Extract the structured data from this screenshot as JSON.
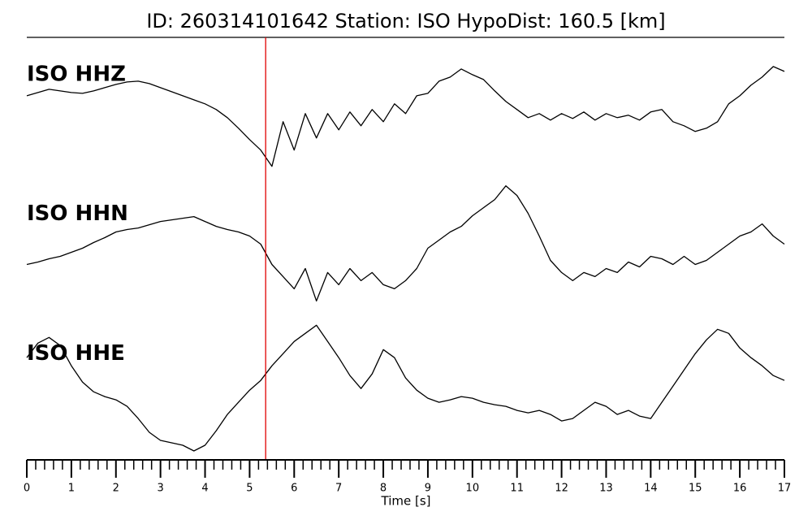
{
  "chart_data": {
    "type": "line",
    "title": "ID: 260314101642   Station: ISO   HypoDist:   160.5 [km]",
    "xlabel": "Time [s]",
    "x": [
      0,
      0.25,
      0.5,
      0.75,
      1,
      1.25,
      1.5,
      1.75,
      2,
      2.25,
      2.5,
      2.75,
      3,
      3.25,
      3.5,
      3.75,
      4,
      4.25,
      4.5,
      4.75,
      5,
      5.25,
      5.5,
      5.75,
      6,
      6.25,
      6.5,
      6.75,
      7,
      7.25,
      7.5,
      7.75,
      8,
      8.25,
      8.5,
      8.75,
      9,
      9.25,
      9.5,
      9.75,
      10,
      10.25,
      10.5,
      10.75,
      11,
      11.25,
      11.5,
      11.75,
      12,
      12.25,
      12.5,
      12.75,
      13,
      13.25,
      13.5,
      13.75,
      14,
      14.25,
      14.5,
      14.75,
      15,
      15.25,
      15.5,
      15.75,
      16,
      16.25,
      16.5,
      16.75,
      17
    ],
    "series": [
      {
        "name": "ISO HHZ",
        "color": "#000000",
        "values": [
          18,
          22,
          26,
          24,
          22,
          21,
          24,
          28,
          32,
          35,
          36,
          33,
          28,
          23,
          18,
          13,
          8,
          1,
          -9,
          -22,
          -36,
          -49,
          -69,
          -14,
          -49,
          -4,
          -34,
          -4,
          -24,
          -2,
          -19,
          1,
          -14,
          8,
          -4,
          18,
          21,
          36,
          41,
          51,
          44,
          38,
          24,
          11,
          1,
          -9,
          -4,
          -12,
          -4,
          -10,
          -2,
          -12,
          -4,
          -9,
          -6,
          -12,
          -2,
          1,
          -14,
          -19,
          -26,
          -22,
          -14,
          8,
          18,
          31,
          41,
          54,
          48
        ]
      },
      {
        "name": "ISO HHN",
        "color": "#000000",
        "values": [
          -18,
          -15,
          -11,
          -8,
          -3,
          2,
          9,
          15,
          22,
          25,
          27,
          31,
          35,
          37,
          39,
          41,
          35,
          29,
          25,
          22,
          17,
          7,
          -18,
          -33,
          -48,
          -23,
          -63,
          -28,
          -43,
          -23,
          -38,
          -28,
          -43,
          -48,
          -38,
          -23,
          2,
          12,
          22,
          29,
          42,
          52,
          62,
          79,
          67,
          45,
          17,
          -13,
          -28,
          -38,
          -28,
          -33,
          -23,
          -28,
          -15,
          -21,
          -8,
          -11,
          -18,
          -8,
          -18,
          -13,
          -3,
          7,
          17,
          22,
          32,
          17,
          7
        ]
      },
      {
        "name": "ISO HHE",
        "color": "#000000",
        "values": [
          39,
          57,
          64,
          54,
          29,
          9,
          -3,
          -9,
          -13,
          -21,
          -36,
          -53,
          -63,
          -66,
          -69,
          -76,
          -69,
          -51,
          -31,
          -16,
          -1,
          11,
          29,
          44,
          59,
          69,
          79,
          59,
          39,
          17,
          1,
          19,
          49,
          39,
          14,
          -1,
          -11,
          -16,
          -13,
          -9,
          -11,
          -16,
          -19,
          -21,
          -26,
          -29,
          -26,
          -31,
          -39,
          -36,
          -26,
          -16,
          -21,
          -31,
          -26,
          -33,
          -36,
          -16,
          4,
          24,
          44,
          61,
          74,
          69,
          51,
          39,
          29,
          17,
          11
        ]
      }
    ],
    "label_color": "#4c9a0a",
    "ylim": [
      -86,
      86
    ],
    "xlim": [
      0,
      17
    ],
    "xticks": [
      0,
      1,
      2,
      3,
      4,
      5,
      6,
      7,
      8,
      9,
      10,
      11,
      12,
      13,
      14,
      15,
      16,
      17
    ],
    "xminorticks": [
      0.2,
      0.4,
      0.6,
      0.8,
      1.2,
      1.4,
      1.6,
      1.8,
      2.2,
      2.4,
      2.6,
      2.8,
      3.2,
      3.4,
      3.6,
      3.8,
      4.2,
      4.4,
      4.6,
      4.8,
      5.2,
      5.4,
      5.6,
      5.8,
      6.2,
      6.4,
      6.6,
      6.8,
      7.2,
      7.4,
      7.6,
      7.8,
      8.2,
      8.4,
      8.6,
      8.8,
      9.2,
      9.4,
      9.6,
      9.8,
      10.2,
      10.4,
      10.6,
      10.8,
      11.2,
      11.4,
      11.6,
      11.8,
      12.2,
      12.4,
      12.6,
      12.8,
      13.2,
      13.4,
      13.6,
      13.8,
      14.2,
      14.4,
      14.6,
      14.8,
      15.2,
      15.4,
      15.6,
      15.8,
      16.2,
      16.4,
      16.6,
      16.8
    ],
    "vline": {
      "x": 5.36,
      "color": "#e00000"
    }
  }
}
